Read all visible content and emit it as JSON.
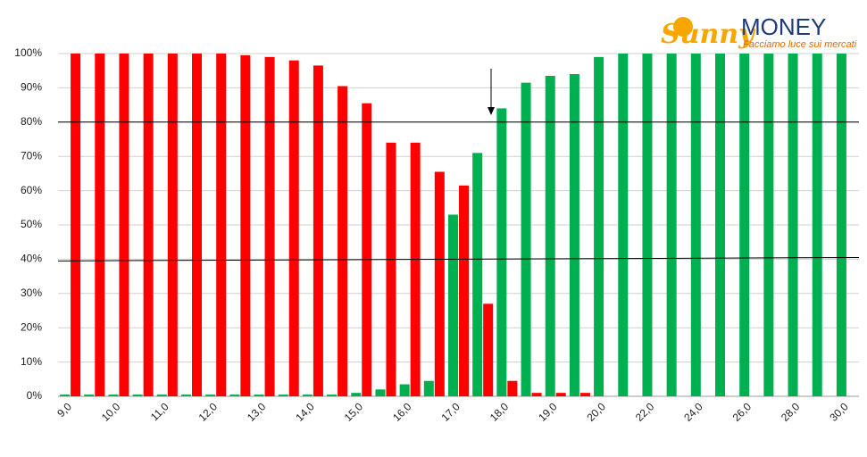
{
  "logo": {
    "brand": "Sunny",
    "name": "MONEY",
    "tagline": "Facciamo luce sui mercati"
  },
  "chart_data": {
    "type": "bar",
    "categories": [
      "9,0",
      null,
      "10,0",
      null,
      "11,0",
      null,
      "12,0",
      null,
      "13,0",
      null,
      "14,0",
      null,
      "15,0",
      null,
      "16,0",
      null,
      "17,0",
      null,
      "18,0",
      null,
      "19,0",
      null,
      "20,0",
      null,
      "22,0",
      null,
      "24,0",
      null,
      "26,0",
      null,
      "28,0",
      null,
      "30,0"
    ],
    "series": [
      {
        "color": "#00b050",
        "values": [
          0.5,
          0.5,
          0.5,
          0.5,
          0.5,
          0.5,
          0.5,
          0.5,
          0.5,
          0.5,
          0.5,
          0.5,
          1,
          2,
          3.5,
          4.5,
          53,
          71,
          84,
          91.5,
          93.5,
          94,
          99,
          100,
          100,
          100,
          100,
          100,
          100,
          100,
          100,
          100,
          100
        ]
      },
      {
        "color": "#ff0000",
        "values": [
          100,
          100,
          100,
          100,
          100,
          100,
          100,
          99.5,
          99,
          98,
          96.5,
          90.5,
          85.5,
          74,
          74,
          65.5,
          61.5,
          27,
          4.5,
          1,
          1,
          1,
          0,
          0,
          0,
          0,
          0,
          0,
          0,
          0,
          0,
          0,
          0
        ]
      }
    ],
    "reference_lines": [
      {
        "color": "#000000",
        "values": [
          80,
          80
        ]
      },
      {
        "color": "#000000",
        "values": [
          39.5,
          40.5
        ]
      }
    ],
    "ylim": [
      0,
      100
    ],
    "yticks": [
      {
        "value": 0,
        "label": "0%"
      },
      {
        "value": 10,
        "label": "10%"
      },
      {
        "value": 20,
        "label": "20%"
      },
      {
        "value": 30,
        "label": "30%"
      },
      {
        "value": 40,
        "label": "40%"
      },
      {
        "value": 50,
        "label": "50%"
      },
      {
        "value": 60,
        "label": "60%"
      },
      {
        "value": 70,
        "label": "70%"
      },
      {
        "value": 80,
        "label": "80%"
      },
      {
        "value": 90,
        "label": "90%"
      },
      {
        "value": 100,
        "label": "100%"
      }
    ],
    "grid": true
  }
}
